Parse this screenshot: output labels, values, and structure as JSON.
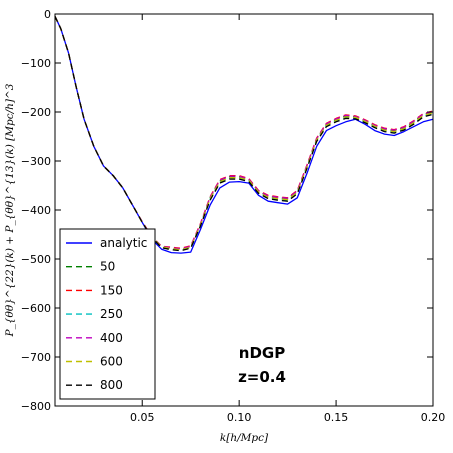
{
  "chart_data": {
    "type": "line",
    "xlabel": "k[h/Mpc]",
    "ylabel": "P_{θθ}^{22}(k) + P_{θθ}^{13}(k) [Mpc/h]^3",
    "xlim": [
      0.005,
      0.2
    ],
    "ylim": [
      -800,
      0
    ],
    "xticks": [
      0.05,
      0.1,
      0.15,
      0.2
    ],
    "xtick_labels": [
      "0.05",
      "0.10",
      "0.15",
      "0.20"
    ],
    "yticks": [
      0,
      -100,
      -200,
      -300,
      -400,
      -500,
      -600,
      -700,
      -800
    ],
    "ytick_labels": [
      "0",
      "−100",
      "−200",
      "−300",
      "−400",
      "−500",
      "−600",
      "−700",
      "−800"
    ],
    "grid": false,
    "legend_position": "lower-left",
    "annotation_lines": [
      "nDGP",
      "z=0.4"
    ],
    "x": [
      0.005,
      0.008,
      0.012,
      0.016,
      0.02,
      0.025,
      0.03,
      0.035,
      0.04,
      0.045,
      0.05,
      0.055,
      0.06,
      0.065,
      0.07,
      0.075,
      0.08,
      0.085,
      0.09,
      0.095,
      0.1,
      0.105,
      0.11,
      0.115,
      0.12,
      0.125,
      0.13,
      0.135,
      0.14,
      0.145,
      0.15,
      0.155,
      0.16,
      0.165,
      0.17,
      0.175,
      0.18,
      0.185,
      0.19,
      0.195,
      0.2
    ],
    "series": [
      {
        "name": "analytic",
        "color": "#0000ff",
        "dash": "solid",
        "values": [
          -5,
          -30,
          -80,
          -150,
          -215,
          -270,
          -310,
          -330,
          -355,
          -390,
          -425,
          -460,
          -480,
          -487,
          -488,
          -486,
          -440,
          -390,
          -355,
          -343,
          -342,
          -345,
          -370,
          -382,
          -385,
          -388,
          -375,
          -325,
          -270,
          -238,
          -228,
          -220,
          -215,
          -225,
          -238,
          -245,
          -248,
          -240,
          -230,
          -220,
          -215
        ]
      },
      {
        "name": "50",
        "color": "#008000",
        "dash": "dashed",
        "values": [
          -5,
          -30,
          -80,
          -150,
          -215,
          -270,
          -310,
          -330,
          -355,
          -390,
          -424,
          -455,
          -475,
          -478,
          -480,
          -475,
          -430,
          -375,
          -340,
          -332,
          -332,
          -338,
          -362,
          -372,
          -375,
          -377,
          -362,
          -310,
          -255,
          -225,
          -215,
          -208,
          -210,
          -218,
          -228,
          -235,
          -238,
          -232,
          -220,
          -205,
          -200
        ]
      },
      {
        "name": "150",
        "color": "#ff0000",
        "dash": "dashed",
        "values": [
          -5,
          -30,
          -80,
          -150,
          -215,
          -270,
          -310,
          -330,
          -355,
          -390,
          -424,
          -454,
          -474,
          -476,
          -478,
          -473,
          -428,
          -373,
          -338,
          -330,
          -330,
          -336,
          -360,
          -370,
          -373,
          -375,
          -360,
          -308,
          -253,
          -223,
          -213,
          -206,
          -208,
          -216,
          -226,
          -233,
          -236,
          -230,
          -218,
          -203,
          -198
        ]
      },
      {
        "name": "250",
        "color": "#00bfbf",
        "dash": "dashed",
        "values": [
          -5,
          -30,
          -80,
          -150,
          -215,
          -270,
          -310,
          -330,
          -355,
          -390,
          -425,
          -456,
          -476,
          -480,
          -482,
          -477,
          -432,
          -378,
          -343,
          -335,
          -335,
          -340,
          -364,
          -375,
          -378,
          -380,
          -365,
          -313,
          -258,
          -228,
          -218,
          -211,
          -212,
          -220,
          -230,
          -238,
          -241,
          -235,
          -223,
          -208,
          -203
        ]
      },
      {
        "name": "400",
        "color": "#bf00bf",
        "dash": "dashed",
        "values": [
          -5,
          -30,
          -80,
          -150,
          -215,
          -270,
          -310,
          -330,
          -355,
          -390,
          -424,
          -454,
          -474,
          -477,
          -479,
          -474,
          -429,
          -374,
          -339,
          -331,
          -331,
          -337,
          -361,
          -371,
          -374,
          -376,
          -361,
          -309,
          -254,
          -224,
          -214,
          -207,
          -209,
          -217,
          -227,
          -234,
          -237,
          -231,
          -219,
          -204,
          -199
        ]
      },
      {
        "name": "600",
        "color": "#bfbf00",
        "dash": "dashed",
        "values": [
          -5,
          -30,
          -80,
          -150,
          -215,
          -270,
          -310,
          -330,
          -355,
          -390,
          -425,
          -455,
          -475,
          -479,
          -481,
          -476,
          -431,
          -377,
          -342,
          -334,
          -334,
          -339,
          -363,
          -374,
          -377,
          -379,
          -364,
          -312,
          -257,
          -227,
          -217,
          -210,
          -211,
          -219,
          -229,
          -237,
          -240,
          -234,
          -222,
          -207,
          -202
        ]
      },
      {
        "name": "800",
        "color": "#000000",
        "dash": "dashed",
        "values": [
          -5,
          -30,
          -80,
          -150,
          -215,
          -270,
          -310,
          -330,
          -355,
          -390,
          -425,
          -456,
          -477,
          -481,
          -483,
          -478,
          -433,
          -380,
          -345,
          -337,
          -337,
          -342,
          -366,
          -377,
          -380,
          -382,
          -367,
          -315,
          -260,
          -230,
          -220,
          -213,
          -214,
          -222,
          -232,
          -240,
          -243,
          -237,
          -225,
          -210,
          -205
        ]
      }
    ]
  }
}
